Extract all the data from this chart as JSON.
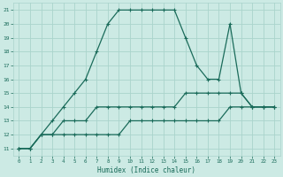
{
  "xlabel": "Humidex (Indice chaleur)",
  "bg_color": "#cceae4",
  "grid_color": "#aad4cc",
  "line_color": "#1a6b5a",
  "x": [
    0,
    1,
    2,
    3,
    4,
    5,
    6,
    7,
    8,
    9,
    10,
    11,
    12,
    13,
    14,
    15,
    16,
    17,
    18,
    19,
    20,
    21,
    22,
    23
  ],
  "y_main": [
    11,
    11,
    12,
    13,
    14,
    15,
    16,
    18,
    20,
    21,
    21,
    21,
    21,
    21,
    21,
    19,
    17,
    16,
    16,
    20,
    15,
    14,
    14,
    14
  ],
  "y_mid": [
    11,
    11,
    12,
    12,
    13,
    13,
    13,
    14,
    14,
    14,
    14,
    14,
    14,
    14,
    14,
    15,
    15,
    15,
    15,
    15,
    15,
    14,
    14,
    14
  ],
  "y_low": [
    11,
    11,
    12,
    12,
    12,
    12,
    12,
    12,
    12,
    12,
    13,
    13,
    13,
    13,
    13,
    13,
    13,
    13,
    13,
    14,
    14,
    14,
    14,
    14
  ],
  "xlim": [
    -0.5,
    23.5
  ],
  "ylim": [
    10.5,
    21.5
  ],
  "yticks": [
    11,
    12,
    13,
    14,
    15,
    16,
    17,
    18,
    19,
    20,
    21
  ],
  "xticks": [
    0,
    1,
    2,
    3,
    4,
    5,
    6,
    7,
    8,
    9,
    10,
    11,
    12,
    13,
    14,
    15,
    16,
    17,
    18,
    19,
    20,
    21,
    22,
    23
  ]
}
